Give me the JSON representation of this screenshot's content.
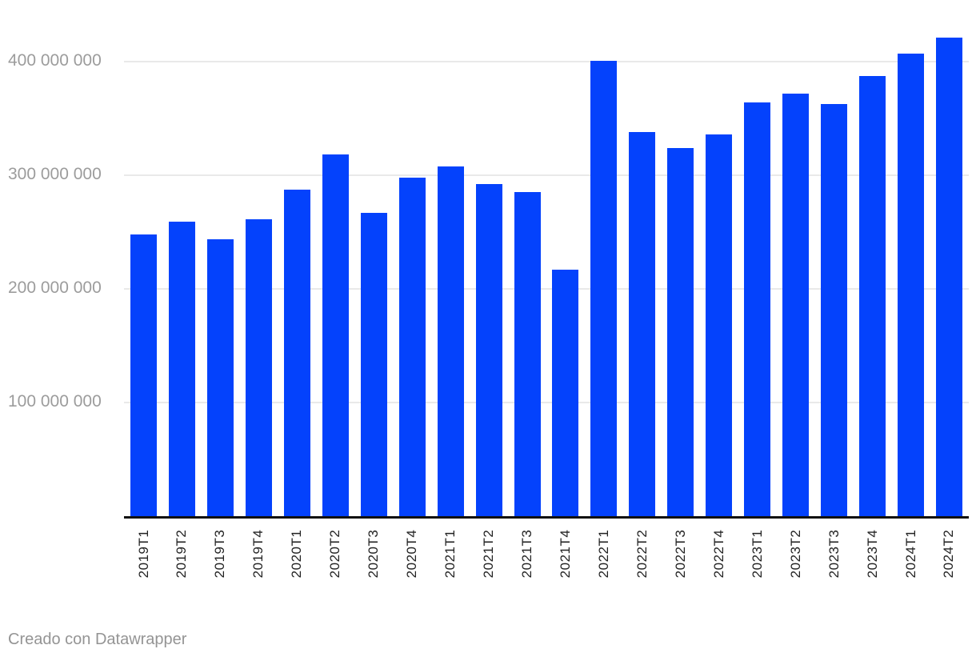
{
  "footer": {
    "credit": "Creado con Datawrapper"
  },
  "colors": {
    "bar": "#0442fc",
    "grid": "#e9e9e9",
    "axis": "#111111",
    "y_tick_label": "#9c9c9c",
    "x_tick_label": "#222222",
    "footer_text": "#949494"
  },
  "chart_data": {
    "type": "bar",
    "title": "",
    "xlabel": "",
    "ylabel": "",
    "legend": null,
    "grid": "horizontal",
    "ylim": [
      0,
      455000000
    ],
    "categories": [
      "2019T1",
      "2019T2",
      "2019T3",
      "2019T4",
      "2020T1",
      "2020T2",
      "2020T3",
      "2020T4",
      "2021T1",
      "2021T2",
      "2021T3",
      "2021T4",
      "2022T1",
      "2022T2",
      "2022T3",
      "2022T4",
      "2023T1",
      "2023T2",
      "2023T3",
      "2023T4",
      "2024T1",
      "2024T2"
    ],
    "values": [
      248000000,
      259000000,
      244000000,
      261000000,
      287000000,
      318000000,
      267000000,
      298000000,
      308000000,
      292000000,
      285000000,
      217000000,
      401000000,
      338000000,
      324000000,
      336000000,
      364000000,
      372000000,
      363000000,
      387000000,
      407000000,
      421000000
    ],
    "y_ticks": [
      {
        "value": 100000000,
        "label": "100 000 000"
      },
      {
        "value": 200000000,
        "label": "200 000 000"
      },
      {
        "value": 300000000,
        "label": "300 000 000"
      },
      {
        "value": 400000000,
        "label": "400 000 000"
      }
    ]
  }
}
